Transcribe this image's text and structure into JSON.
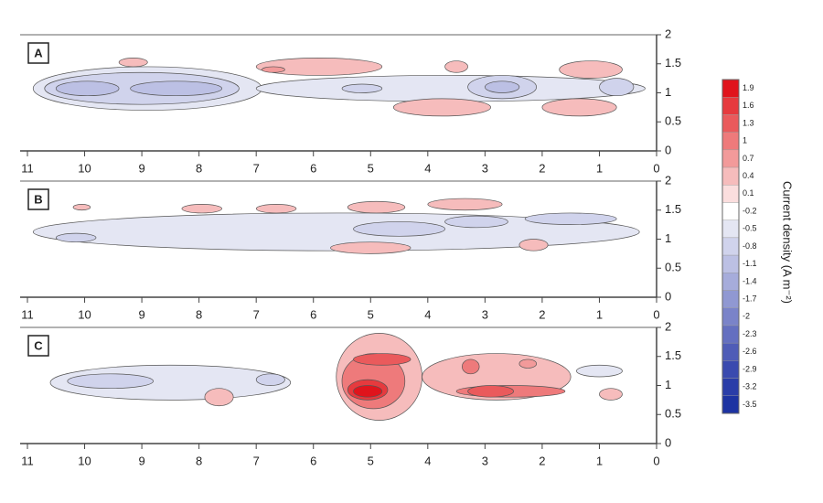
{
  "chart_data": [
    {
      "type": "contour",
      "label": "A",
      "xlim": [
        11,
        0
      ],
      "xticks": [
        11,
        10,
        9,
        8,
        7,
        6,
        5,
        4,
        3,
        2,
        1,
        0
      ],
      "ylim": [
        0,
        2
      ],
      "yticks": [
        0,
        0.5,
        1,
        1.5,
        2
      ],
      "regions": [
        {
          "level": -0.5,
          "x": [
            10.9,
            6.9
          ],
          "y": [
            0.7,
            1.45
          ]
        },
        {
          "level": -0.5,
          "x": [
            7,
            0.2
          ],
          "y": [
            0.85,
            1.3
          ]
        },
        {
          "level": -0.8,
          "x": [
            10.7,
            7.3
          ],
          "y": [
            0.8,
            1.35
          ]
        },
        {
          "level": -1.1,
          "x": [
            10.5,
            9.4
          ],
          "y": [
            0.95,
            1.2
          ]
        },
        {
          "level": -1.1,
          "x": [
            9.2,
            7.6
          ],
          "y": [
            0.95,
            1.2
          ]
        },
        {
          "level": -0.8,
          "x": [
            3.3,
            2.1
          ],
          "y": [
            0.9,
            1.3
          ]
        },
        {
          "level": -1.1,
          "x": [
            3,
            2.4
          ],
          "y": [
            1,
            1.2
          ]
        },
        {
          "level": -0.8,
          "x": [
            1,
            0.4
          ],
          "y": [
            0.95,
            1.25
          ]
        },
        {
          "level": -0.8,
          "x": [
            5.5,
            4.8
          ],
          "y": [
            1,
            1.15
          ]
        },
        {
          "level": 0.4,
          "x": [
            7,
            4.8
          ],
          "y": [
            1.3,
            1.6
          ]
        },
        {
          "level": 0.7,
          "x": [
            6.9,
            6.5
          ],
          "y": [
            1.35,
            1.45
          ]
        },
        {
          "level": 0.4,
          "x": [
            4.6,
            2.9
          ],
          "y": [
            0.6,
            0.9
          ]
        },
        {
          "level": 0.4,
          "x": [
            2,
            0.7
          ],
          "y": [
            0.6,
            0.9
          ]
        },
        {
          "level": 0.4,
          "x": [
            1.7,
            0.6
          ],
          "y": [
            1.25,
            1.55
          ]
        },
        {
          "level": 0.4,
          "x": [
            9.4,
            8.9
          ],
          "y": [
            1.45,
            1.6
          ]
        },
        {
          "level": 0.4,
          "x": [
            3.7,
            3.3
          ],
          "y": [
            1.35,
            1.55
          ]
        }
      ]
    },
    {
      "type": "contour",
      "label": "B",
      "xlim": [
        11,
        0
      ],
      "xticks": [
        11,
        10,
        9,
        8,
        7,
        6,
        5,
        4,
        3,
        2,
        1,
        0
      ],
      "ylim": [
        0,
        2
      ],
      "yticks": [
        0,
        0.5,
        1,
        1.5,
        2
      ],
      "regions": [
        {
          "level": -0.5,
          "x": [
            10.9,
            0.3
          ],
          "y": [
            0.8,
            1.45
          ]
        },
        {
          "level": -0.8,
          "x": [
            10.5,
            9.8
          ],
          "y": [
            0.95,
            1.1
          ]
        },
        {
          "level": -0.8,
          "x": [
            2.3,
            0.7
          ],
          "y": [
            1.25,
            1.45
          ]
        },
        {
          "level": -0.8,
          "x": [
            5.3,
            3.7
          ],
          "y": [
            1.05,
            1.3
          ]
        },
        {
          "level": -0.8,
          "x": [
            3.7,
            2.6
          ],
          "y": [
            1.2,
            1.4
          ]
        },
        {
          "level": 0.4,
          "x": [
            5.7,
            4.3
          ],
          "y": [
            0.75,
            0.95
          ]
        },
        {
          "level": 0.4,
          "x": [
            4,
            2.7
          ],
          "y": [
            1.5,
            1.7
          ]
        },
        {
          "level": 0.4,
          "x": [
            5.4,
            4.4
          ],
          "y": [
            1.45,
            1.65
          ]
        },
        {
          "level": 0.4,
          "x": [
            7,
            6.3
          ],
          "y": [
            1.45,
            1.6
          ]
        },
        {
          "level": 0.4,
          "x": [
            8.3,
            7.6
          ],
          "y": [
            1.45,
            1.6
          ]
        },
        {
          "level": 0.4,
          "x": [
            10.2,
            9.9
          ],
          "y": [
            1.5,
            1.6
          ]
        },
        {
          "level": 0.4,
          "x": [
            2.4,
            1.9
          ],
          "y": [
            0.8,
            1
          ]
        }
      ]
    },
    {
      "type": "contour",
      "label": "C",
      "xlim": [
        11,
        0
      ],
      "xticks": [
        11,
        10,
        9,
        8,
        7,
        6,
        5,
        4,
        3,
        2,
        1,
        0
      ],
      "ylim": [
        0,
        2
      ],
      "yticks": [
        0,
        0.5,
        1,
        1.5,
        2
      ],
      "regions": [
        {
          "level": -0.5,
          "x": [
            10.6,
            6.4
          ],
          "y": [
            0.75,
            1.35
          ]
        },
        {
          "level": -0.8,
          "x": [
            10.3,
            8.8
          ],
          "y": [
            0.95,
            1.2
          ]
        },
        {
          "level": -0.8,
          "x": [
            7,
            6.5
          ],
          "y": [
            1,
            1.2
          ]
        },
        {
          "level": 0.4,
          "x": [
            7.9,
            7.4
          ],
          "y": [
            0.65,
            0.95
          ]
        },
        {
          "level": 0.4,
          "x": [
            5.6,
            4.1
          ],
          "y": [
            0.4,
            1.9
          ]
        },
        {
          "level": 0.4,
          "x": [
            4.1,
            1.5
          ],
          "y": [
            0.75,
            1.55
          ]
        },
        {
          "level": 1,
          "x": [
            5.5,
            4.4
          ],
          "y": [
            0.6,
            1.55
          ]
        },
        {
          "level": 1.3,
          "x": [
            5.3,
            4.3
          ],
          "y": [
            1.35,
            1.55
          ]
        },
        {
          "level": 1.6,
          "x": [
            5.4,
            4.7
          ],
          "y": [
            0.75,
            1.1
          ]
        },
        {
          "level": 1.9,
          "x": [
            5.3,
            4.8
          ],
          "y": [
            0.8,
            1
          ]
        },
        {
          "level": 1,
          "x": [
            3.5,
            1.6
          ],
          "y": [
            0.8,
            1
          ]
        },
        {
          "level": 1.3,
          "x": [
            3.3,
            2.5
          ],
          "y": [
            0.8,
            1
          ]
        },
        {
          "level": 1,
          "x": [
            3.4,
            3.1
          ],
          "y": [
            1.2,
            1.45
          ]
        },
        {
          "level": 0.7,
          "x": [
            2.4,
            2.1
          ],
          "y": [
            1.3,
            1.45
          ]
        },
        {
          "level": -0.5,
          "x": [
            1.4,
            0.6
          ],
          "y": [
            1.15,
            1.35
          ]
        },
        {
          "level": 0.4,
          "x": [
            1,
            0.6
          ],
          "y": [
            0.75,
            0.95
          ]
        }
      ]
    }
  ],
  "colorbar": {
    "title": "Current density (A m⁻²)",
    "levels": [
      1.9,
      1.6,
      1.3,
      1,
      0.7,
      0.4,
      0.1,
      -0.2,
      -0.5,
      -0.8,
      -1.1,
      -1.4,
      -1.7,
      -2,
      -2.3,
      -2.6,
      -2.9,
      -3.2,
      -3.5
    ],
    "colors": [
      "#e0141c",
      "#e63a3e",
      "#ea5a5c",
      "#ee7a7b",
      "#f29a9a",
      "#f6bcbc",
      "#fbdede",
      "#ffffff",
      "#e4e6f3",
      "#d0d3ec",
      "#bcc0e4",
      "#a6acdb",
      "#9098d2",
      "#7a83c9",
      "#646fc0",
      "#4f5cb7",
      "#3a4aaf",
      "#2a3da8",
      "#1d33a2"
    ]
  }
}
